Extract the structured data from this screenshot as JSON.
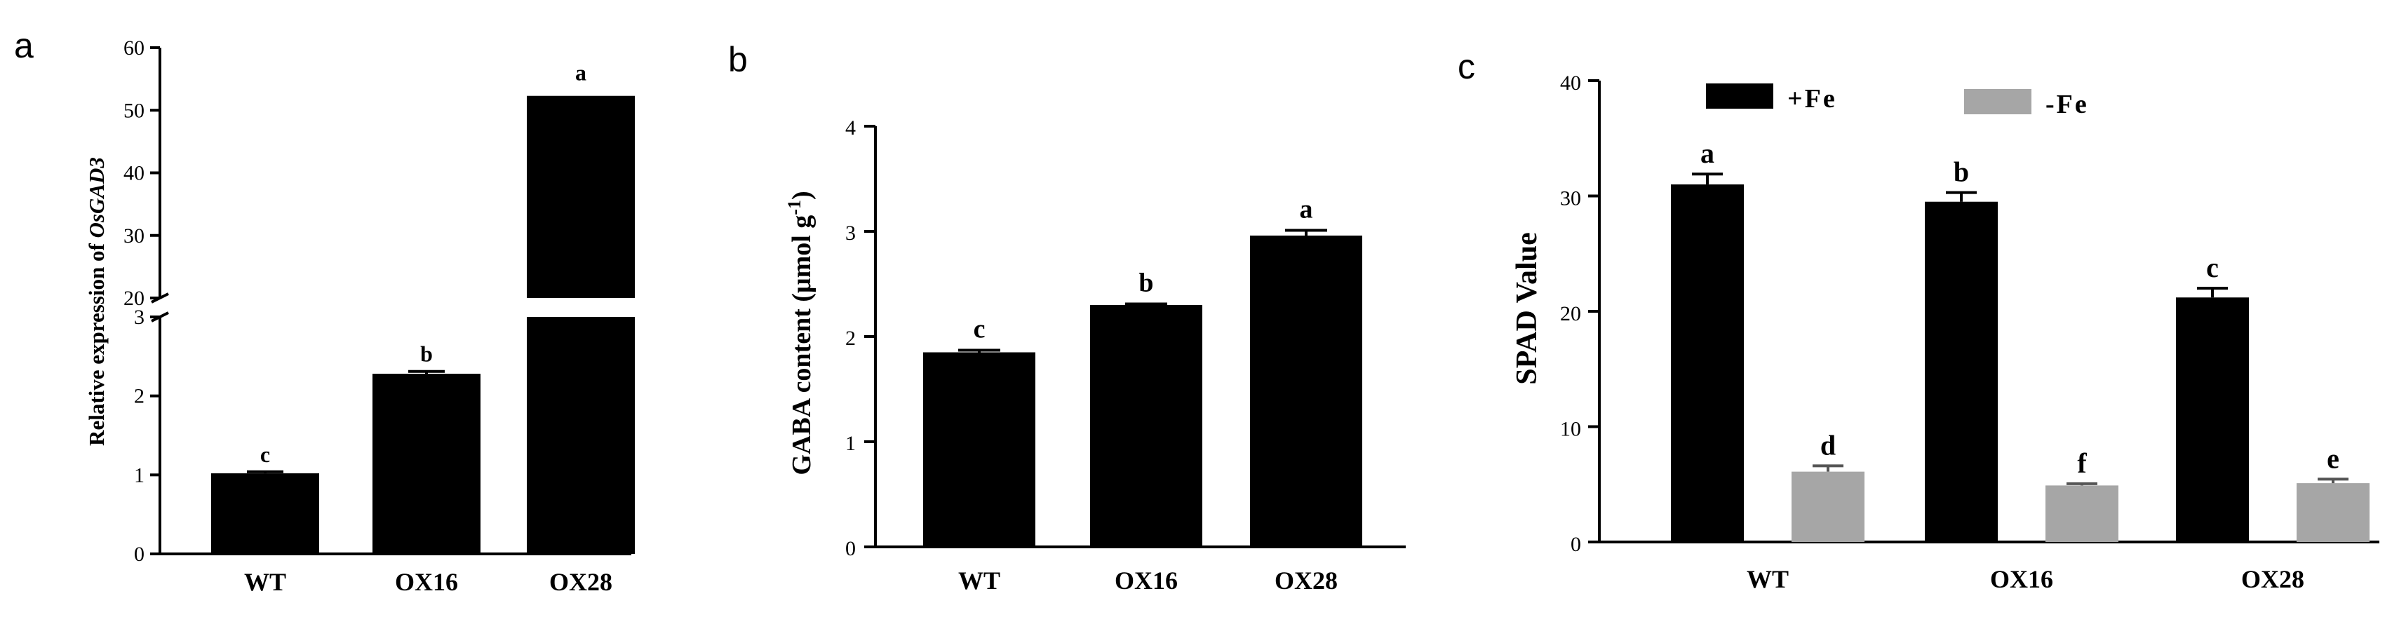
{
  "chart_data": [
    {
      "panel": "a",
      "type": "bar",
      "categories": [
        "WT",
        "OX16",
        "OX28"
      ],
      "values": [
        1.02,
        2.28,
        52.3
      ],
      "errors": [
        0.02,
        0.03,
        0.0
      ],
      "letters": [
        "c",
        "b",
        "a"
      ],
      "xlabel": "",
      "ylabel_prefix": "Relative expression of ",
      "ylabel_italic": "OsGAD3",
      "axis_break": true,
      "ylim_lower": [
        0,
        3
      ],
      "ylim_upper": [
        20,
        60
      ],
      "yticks_lower": [
        "0",
        "1",
        "2",
        "3"
      ],
      "yticks_upper": [
        "20",
        "30",
        "40",
        "50",
        "60"
      ],
      "bar_color": "#000000"
    },
    {
      "panel": "b",
      "type": "bar",
      "categories": [
        "WT",
        "OX16",
        "OX28"
      ],
      "values": [
        1.85,
        2.3,
        2.96
      ],
      "errors": [
        0.02,
        0.01,
        0.05
      ],
      "letters": [
        "c",
        "b",
        "a"
      ],
      "xlabel": "",
      "ylabel_main": "GABA content (μmol g",
      "ylabel_sup": "-1",
      "ylabel_end": ")",
      "ylim": [
        0,
        4
      ],
      "yticks": [
        "0",
        "1",
        "2",
        "3",
        "4"
      ],
      "bar_color": "#000000"
    },
    {
      "panel": "c",
      "type": "bar",
      "categories": [
        "WT",
        "OX16",
        "OX28"
      ],
      "series": [
        {
          "name": "+Fe",
          "values": [
            31.0,
            29.5,
            21.2
          ],
          "errors": [
            0.9,
            0.8,
            0.8
          ],
          "letters": [
            "a",
            "b",
            "c"
          ],
          "color": "#000000"
        },
        {
          "name": "-Fe",
          "values": [
            6.1,
            4.9,
            5.1
          ],
          "errors": [
            0.5,
            0.15,
            0.35
          ],
          "letters": [
            "d",
            "f",
            "e"
          ],
          "color": "#a6a6a6"
        }
      ],
      "xlabel": "",
      "ylabel": "SPAD Value",
      "ylim": [
        0,
        40
      ],
      "yticks": [
        "0",
        "10",
        "20",
        "30",
        "40"
      ],
      "legend_position": "top"
    }
  ]
}
